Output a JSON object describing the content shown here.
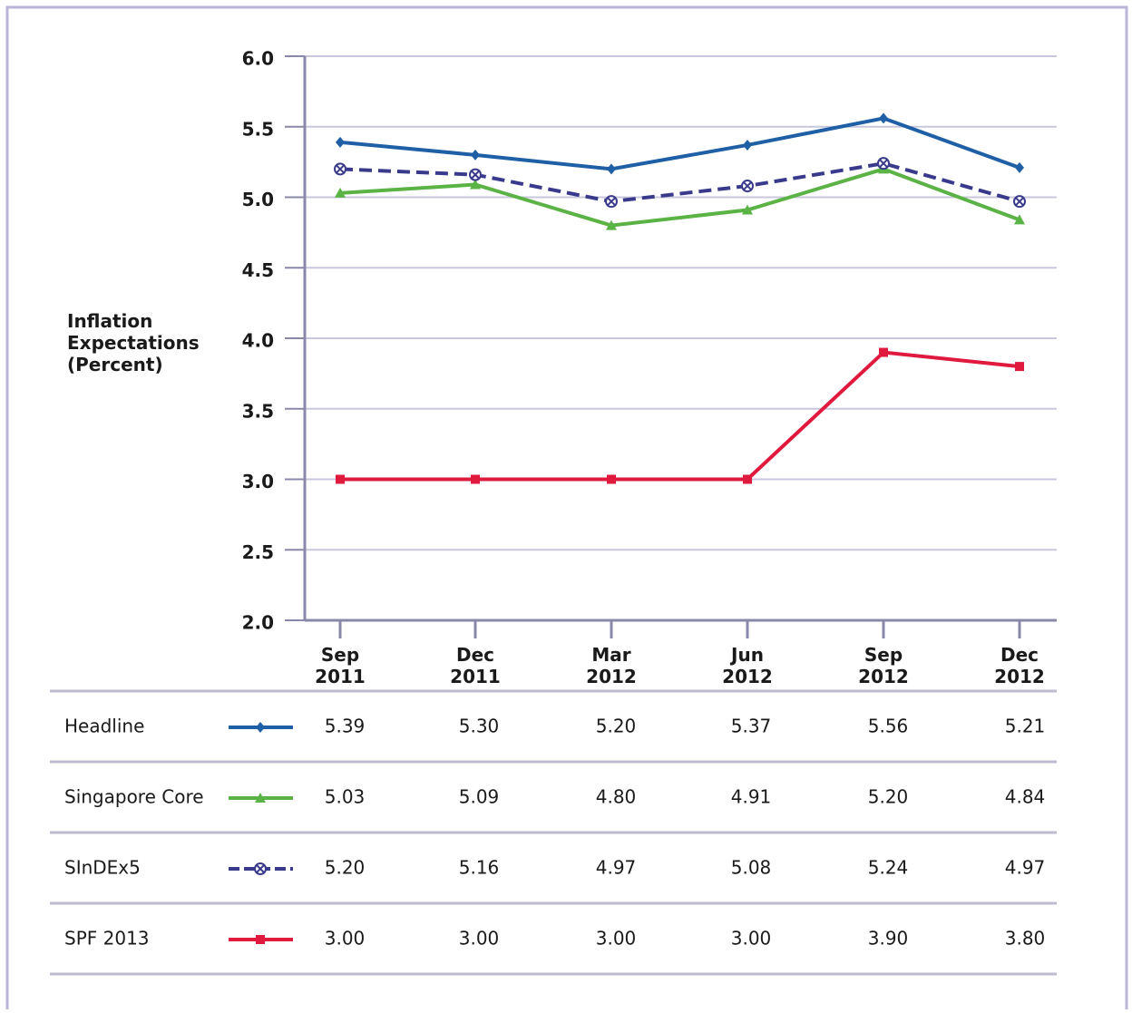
{
  "chart_data": {
    "type": "line",
    "y_label": "Inflation Expectations (Percent)",
    "categories": [
      "Sep 2011",
      "Dec 2011",
      "Mar 2012",
      "Jun 2012",
      "Sep 2012",
      "Dec 2012"
    ],
    "ylim": [
      2,
      6
    ],
    "yticks": [
      {
        "value": 2,
        "label": "2.0"
      },
      {
        "value": 2.5,
        "label": "2.5"
      },
      {
        "value": 3,
        "label": "3.0"
      },
      {
        "value": 3.5,
        "label": "3.5"
      },
      {
        "value": 4,
        "label": "4.0"
      },
      {
        "value": 4.5,
        "label": "4.5"
      },
      {
        "value": 5,
        "label": "5.0"
      },
      {
        "value": 5.5,
        "label": "5.5"
      },
      {
        "value": 6,
        "label": "6.0"
      }
    ],
    "grid": true,
    "series": [
      {
        "name": "Headline",
        "color": "#1f5fa6",
        "marker": "diamond",
        "dashed": false,
        "values": [
          5.39,
          5.3,
          5.2,
          5.37,
          5.56,
          5.21
        ],
        "value_labels": [
          "5.39",
          "5.30",
          "5.20",
          "5.37",
          "5.56",
          "5.21"
        ]
      },
      {
        "name": "Singapore Core",
        "color": "#5bb346",
        "marker": "triangle",
        "dashed": false,
        "values": [
          5.03,
          5.09,
          4.8,
          4.91,
          5.2,
          4.84
        ],
        "value_labels": [
          "5.03",
          "5.09",
          "4.80",
          "4.91",
          "5.20",
          "4.84"
        ]
      },
      {
        "name": "SInDEx5",
        "color": "#3a3a8c",
        "marker": "circle-x",
        "dashed": true,
        "values": [
          5.2,
          5.16,
          4.97,
          5.08,
          5.24,
          4.97
        ],
        "value_labels": [
          "5.20",
          "5.16",
          "4.97",
          "5.08",
          "5.24",
          "4.97"
        ]
      },
      {
        "name": "SPF 2013",
        "color": "#e0193f",
        "marker": "square",
        "dashed": false,
        "values": [
          3,
          3,
          3,
          3,
          3.9,
          3.8
        ],
        "value_labels": [
          "3.00",
          "3.00",
          "3.00",
          "3.00",
          "3.90",
          "3.80"
        ]
      }
    ]
  }
}
